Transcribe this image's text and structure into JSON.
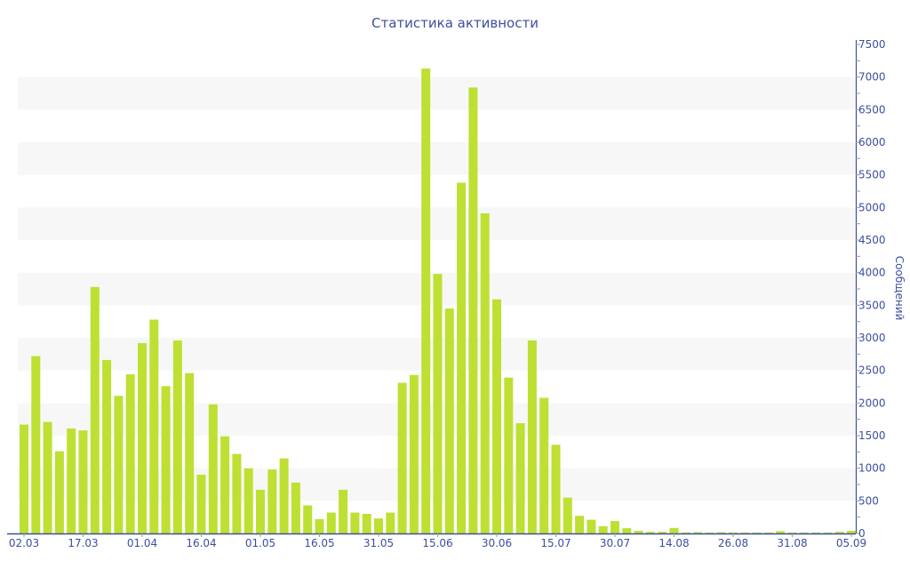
{
  "chart_data": {
    "type": "bar",
    "title": "Статистика активности",
    "xlabel": "",
    "ylabel": "Сообщений",
    "ylim": [
      0,
      7500
    ],
    "yticks": [
      0,
      500,
      1000,
      1500,
      2000,
      2500,
      3000,
      3500,
      4000,
      4500,
      5000,
      5500,
      6000,
      6500,
      7000,
      7500
    ],
    "xtick_labels": [
      "02.03",
      "17.03",
      "01.04",
      "16.04",
      "01.05",
      "16.05",
      "31.05",
      "15.06",
      "30.06",
      "15.07",
      "30.07",
      "14.08",
      "26.08",
      "31.08",
      "05.09"
    ],
    "xtick_every_n_bars": 5,
    "y_axis_side": "right",
    "grid": "alternating horizontal bands",
    "bar_color": "#bde033",
    "axis_color": "#3d4f9f",
    "band_color": "#f7f7f7",
    "values": [
      1670,
      2720,
      1710,
      1260,
      1610,
      1580,
      3780,
      2660,
      2110,
      2440,
      2920,
      3280,
      2260,
      2960,
      2460,
      900,
      1980,
      1490,
      1220,
      1000,
      670,
      980,
      1150,
      780,
      430,
      220,
      320,
      670,
      320,
      300,
      230,
      320,
      2310,
      2430,
      7130,
      3980,
      3450,
      5380,
      6840,
      4910,
      3590,
      2390,
      1690,
      2960,
      2080,
      1360,
      550,
      270,
      210,
      110,
      190,
      80,
      40,
      25,
      25,
      85,
      15,
      20,
      10,
      20,
      15,
      10,
      5,
      10,
      35,
      10,
      10,
      10,
      10,
      25,
      40
    ]
  }
}
